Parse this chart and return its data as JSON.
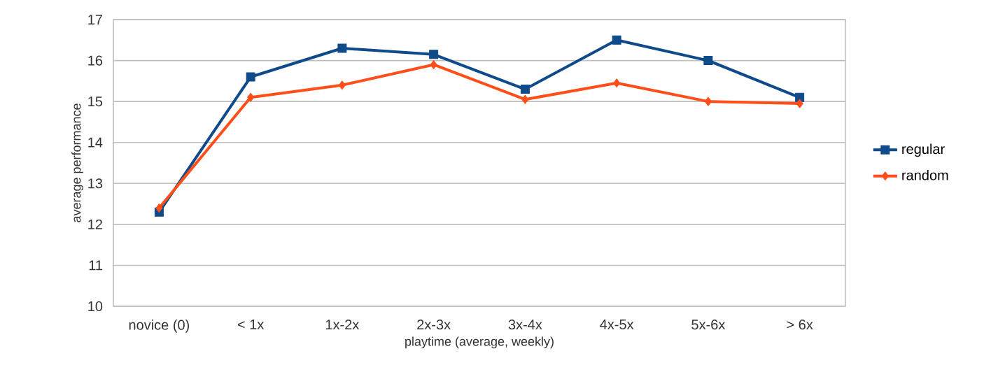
{
  "chart_data": {
    "type": "line",
    "xlabel": "playtime (average, weekly)",
    "ylabel": "average performance",
    "categories": [
      "novice (0)",
      "< 1x",
      "1x-2x",
      "2x-3x",
      "3x-4x",
      "4x-5x",
      "5x-6x",
      "> 6x"
    ],
    "series": [
      {
        "name": "regular",
        "color": "#0f4a8a",
        "marker": "square",
        "values": [
          12.3,
          15.6,
          16.3,
          16.15,
          15.3,
          16.5,
          16.0,
          15.1
        ]
      },
      {
        "name": "random",
        "color": "#ff4e1a",
        "marker": "diamond",
        "values": [
          12.4,
          15.1,
          15.4,
          15.9,
          15.05,
          15.45,
          15.0,
          14.95
        ]
      }
    ],
    "ylim": [
      10,
      17
    ],
    "yticks": [
      10,
      11,
      12,
      13,
      14,
      15,
      16,
      17
    ],
    "grid": "y",
    "legend": "right",
    "line_style": "solid"
  }
}
